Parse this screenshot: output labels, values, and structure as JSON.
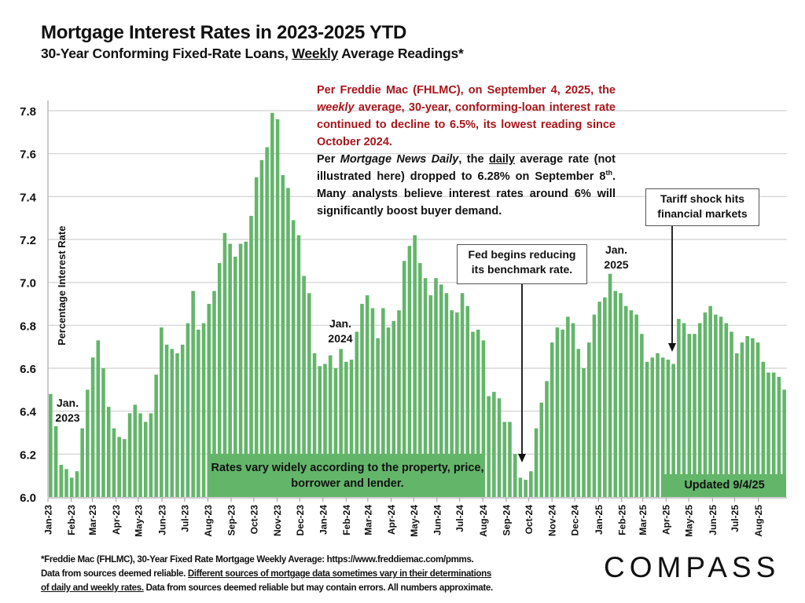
{
  "header": {
    "title": "Mortgage Interest Rates in 2023-2025 YTD",
    "subtitle_pre": "30-Year Conforming Fixed-Rate Loans, ",
    "subtitle_underlined": "Weekly",
    "subtitle_post": " Average Readings*"
  },
  "note": {
    "red_1": "Per Freddie Mac (FHLMC), on September 4, 2025, the ",
    "red_italic": "weekly",
    "red_2": " average, 30-year, conforming-loan interest rate continued to decline to 6.5%, its lowest reading since October 2024.",
    "black_1": "Per ",
    "black_italic": "Mortgage News Daily",
    "black_2": ", the ",
    "black_underlined": "daily",
    "black_3": " average rate (not illustrated here) dropped to 6.28% on September 8",
    "black_sup": "th",
    "black_4": ". Many analysts believe interest rates around 6% will significantly boost buyer demand."
  },
  "callouts": {
    "fed": "Fed begins reducing its benchmark rate.",
    "tariff": "Tariff shock hits financial markets"
  },
  "banners": {
    "rates_vary": "Rates vary widely according to the property, price, borrower and lender.",
    "updated": "Updated 9/4/25"
  },
  "year_labels": {
    "y2023_a": "Jan.",
    "y2023_b": "2023",
    "y2024_a": "Jan.",
    "y2024_b": "2024",
    "y2025_a": "Jan.",
    "y2025_b": "2025"
  },
  "footer": {
    "line1": "*Freddie Mac (FHLMC), 30-Year Fixed Rate Mortgage Weekly Average:  https://www.freddiemac.com/pmms.",
    "line2_pre": "Data from sources deemed reliable. ",
    "line2_underlined": "Different sources of mortgage data sometimes vary in their determinations",
    "line3_underlined": "of daily and weekly rates.",
    "line3_post": " Data from sources deemed reliable but may contain errors. All numbers approximate."
  },
  "logo": {
    "text": "COMPASS"
  },
  "colors": {
    "bar": "#63b56a",
    "grid": "#d0d0d0",
    "note_red": "#a8161b"
  },
  "chart_data": {
    "type": "bar",
    "title": "Mortgage Interest Rates in 2023-2025 YTD",
    "xlabel": "",
    "ylabel": "Percentage Interest  Rate",
    "ylim": [
      6.0,
      7.8
    ],
    "yticks": [
      "6.0",
      "6.2",
      "6.4",
      "6.6",
      "6.8",
      "7.0",
      "7.2",
      "7.4",
      "7.6",
      "7.8"
    ],
    "grid": true,
    "x_tick_labels": [
      "Jan-23",
      "Feb-23",
      "Mar-23",
      "Apr-23",
      "May-23",
      "Jun-23",
      "Jul-23",
      "Aug-23",
      "Sep-23",
      "Oct-23",
      "Nov-23",
      "Dec-23",
      "Jan-24",
      "Feb-24",
      "Mar-24",
      "Apr-24",
      "May-24",
      "Jun-24",
      "Jul-24",
      "Aug-24",
      "Sep-24",
      "Oct-24",
      "Nov-24",
      "Dec-24",
      "Jan-25",
      "Feb-25",
      "Mar-25",
      "Apr-25",
      "May-25",
      "Jun-25",
      "Jul-25",
      "Aug-25"
    ],
    "x_tick_week_index": [
      0,
      4.4,
      8.4,
      12.9,
      17.1,
      21.6,
      25.9,
      30.3,
      34.7,
      39.0,
      43.4,
      47.7,
      52.1,
      56.5,
      60.6,
      65.0,
      69.3,
      73.7,
      78.0,
      82.4,
      86.8,
      91.1,
      95.5,
      99.8,
      104.3,
      108.7,
      112.7,
      117.1,
      121.4,
      125.9,
      130.1,
      134.6
    ],
    "series": [
      {
        "name": "30-Year Fixed Rate Weekly Average",
        "values": [
          6.48,
          6.33,
          6.15,
          6.13,
          6.09,
          6.12,
          6.32,
          6.5,
          6.65,
          6.73,
          6.6,
          6.42,
          6.32,
          6.28,
          6.27,
          6.39,
          6.43,
          6.39,
          6.35,
          6.39,
          6.57,
          6.79,
          6.71,
          6.69,
          6.67,
          6.71,
          6.81,
          6.96,
          6.78,
          6.81,
          6.9,
          6.96,
          7.09,
          7.23,
          7.18,
          7.12,
          7.18,
          7.19,
          7.31,
          7.49,
          7.57,
          7.63,
          7.79,
          7.76,
          7.5,
          7.44,
          7.29,
          7.22,
          7.03,
          6.95,
          6.67,
          6.61,
          6.62,
          6.66,
          6.6,
          6.69,
          6.63,
          6.64,
          6.77,
          6.9,
          6.94,
          6.88,
          6.74,
          6.88,
          6.79,
          6.82,
          6.87,
          7.1,
          7.17,
          7.22,
          7.09,
          7.02,
          6.94,
          7.02,
          6.99,
          6.95,
          6.87,
          6.86,
          6.95,
          6.89,
          6.77,
          6.78,
          6.73,
          6.47,
          6.49,
          6.46,
          6.35,
          6.35,
          6.2,
          6.09,
          6.08,
          6.12,
          6.32,
          6.44,
          6.54,
          6.72,
          6.79,
          6.78,
          6.84,
          6.81,
          6.69,
          6.6,
          6.72,
          6.85,
          6.91,
          6.93,
          7.04,
          6.96,
          6.95,
          6.89,
          6.87,
          6.85,
          6.76,
          6.63,
          6.65,
          6.67,
          6.65,
          6.64,
          6.62,
          6.83,
          6.81,
          6.76,
          6.76,
          6.81,
          6.86,
          6.89,
          6.85,
          6.84,
          6.81,
          6.77,
          6.67,
          6.72,
          6.75,
          6.74,
          6.72,
          6.63,
          6.58,
          6.58,
          6.56,
          6.5
        ]
      }
    ]
  }
}
